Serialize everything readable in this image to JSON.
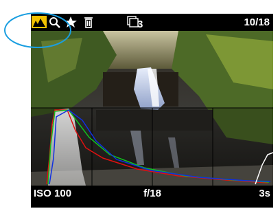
{
  "status_bar": {
    "counter": "10/18",
    "folder_number": "3"
  },
  "exposure": {
    "iso": "ISO 100",
    "aperture": "f/18",
    "shutter": "3s"
  }
}
